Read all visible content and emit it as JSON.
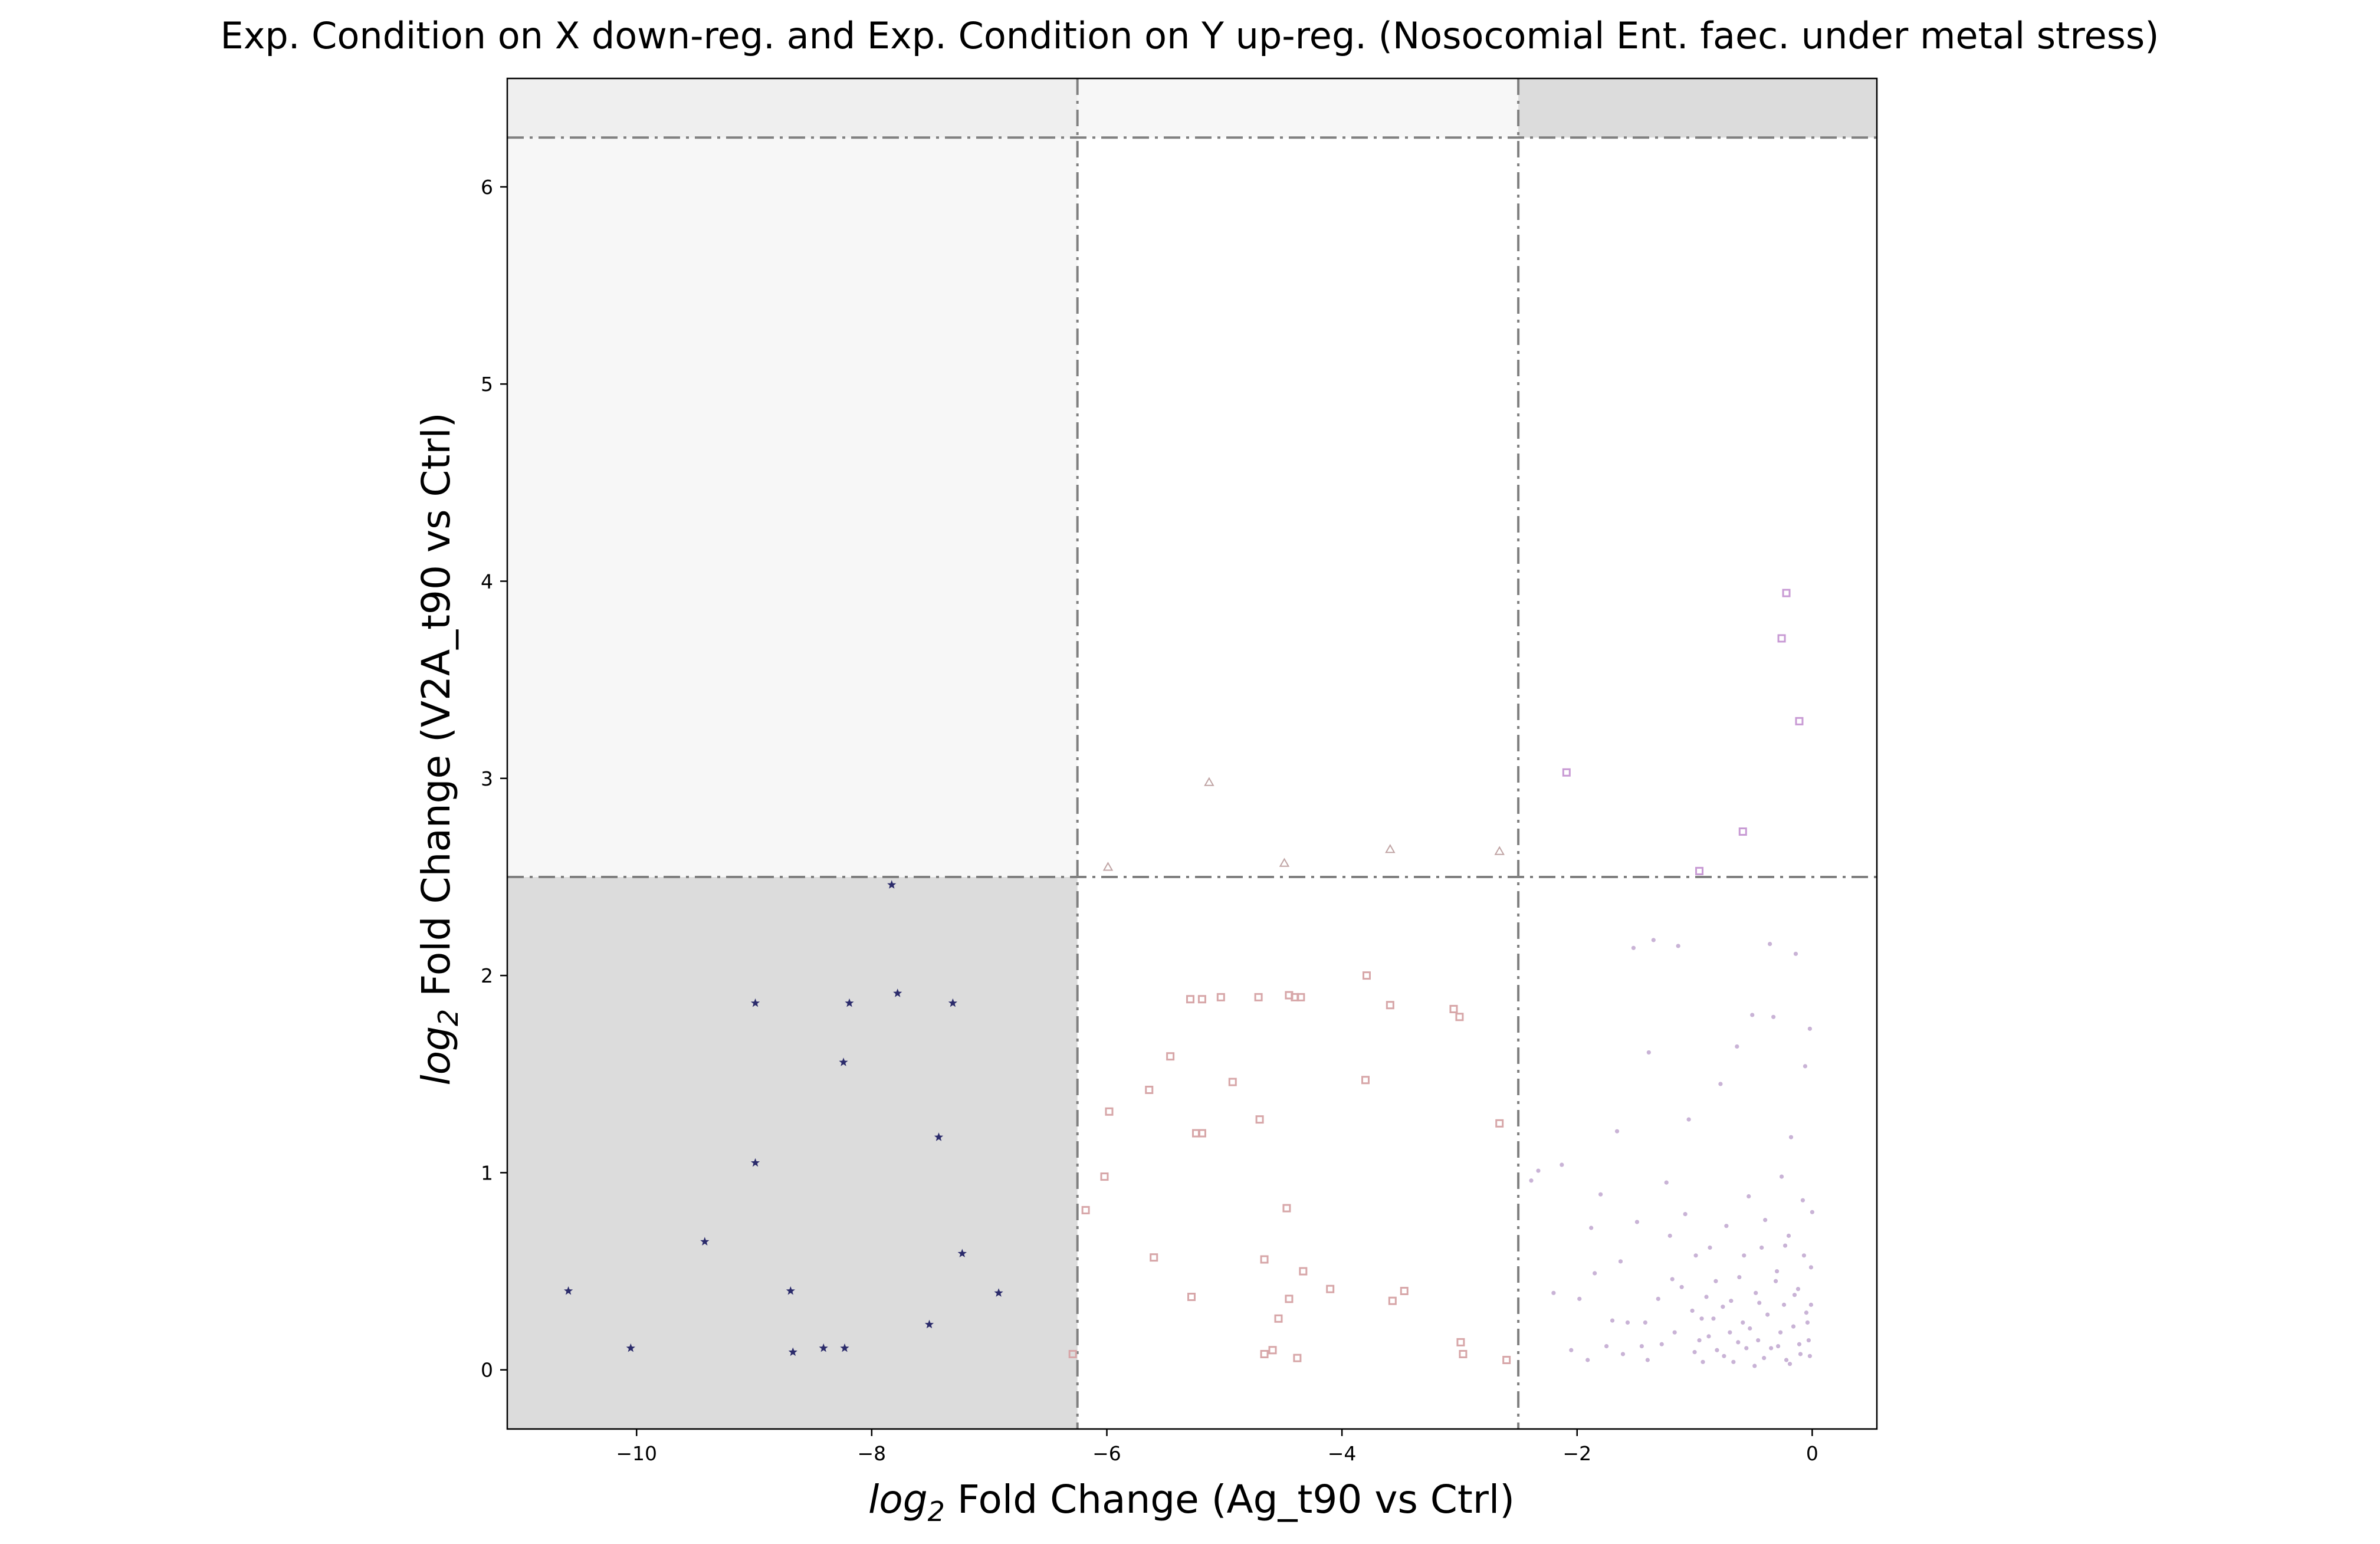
{
  "chart_data": {
    "type": "scatter",
    "title": "Exp. Condition on X down-reg. and Exp. Condition on Y up-reg. (Nosocomial Ent. faec. under metal stress)",
    "xlabel_prefix": "log",
    "xlabel_sub": "2",
    "xlabel_rest": " Fold Change (Ag_t90 vs Ctrl)",
    "ylabel_prefix": "log",
    "ylabel_sub": "2",
    "ylabel_rest": " Fold Change (V2A_t90 vs Ctrl)",
    "xlim": [
      -11.1,
      0.55
    ],
    "ylim": [
      -0.3,
      6.55
    ],
    "xticks": [
      -10,
      -8,
      -6,
      -4,
      -2,
      0
    ],
    "xtick_labels": [
      "−10",
      "−8",
      "−6",
      "−4",
      "−2",
      "0"
    ],
    "yticks": [
      0,
      1,
      2,
      3,
      4,
      5,
      6
    ],
    "ytick_labels": [
      "0",
      "1",
      "2",
      "3",
      "4",
      "5",
      "6"
    ],
    "grid": false,
    "thresholds": {
      "x": [
        -6.25,
        -2.5
      ],
      "y": [
        2.5,
        6.25
      ]
    },
    "regions": [
      {
        "x": [
          -11.1,
          -6.25
        ],
        "y": [
          -0.3,
          2.5
        ],
        "color": "#dcdcdc"
      },
      {
        "x": [
          -11.1,
          -6.25
        ],
        "y": [
          2.5,
          6.25
        ],
        "color": "#f7f7f7"
      },
      {
        "x": [
          -11.1,
          -6.25
        ],
        "y": [
          6.25,
          6.55
        ],
        "color": "#efefef"
      },
      {
        "x": [
          -6.25,
          -2.5
        ],
        "y": [
          6.25,
          6.55
        ],
        "color": "#f7f7f7"
      },
      {
        "x": [
          -2.5,
          0.55
        ],
        "y": [
          6.25,
          6.55
        ],
        "color": "#dcdcdc"
      }
    ],
    "series": [
      {
        "marker": "star",
        "color": "#2b2b6b",
        "points": [
          [
            -10.58,
            0.4
          ],
          [
            -10.05,
            0.11
          ],
          [
            -9.42,
            0.65
          ],
          [
            -8.99,
            1.86
          ],
          [
            -8.99,
            1.05
          ],
          [
            -8.69,
            0.4
          ],
          [
            -8.67,
            0.09
          ],
          [
            -8.41,
            0.11
          ],
          [
            -8.23,
            0.11
          ],
          [
            -8.24,
            1.56
          ],
          [
            -8.19,
            1.86
          ],
          [
            -7.83,
            2.46
          ],
          [
            -7.78,
            1.91
          ],
          [
            -7.51,
            0.23
          ],
          [
            -7.43,
            1.18
          ],
          [
            -7.31,
            1.86
          ],
          [
            -7.23,
            0.59
          ],
          [
            -6.92,
            0.39
          ]
        ]
      },
      {
        "marker": "square",
        "color": "#d7a6a8",
        "points": [
          [
            -6.29,
            0.08
          ],
          [
            -6.18,
            0.81
          ],
          [
            -6.02,
            0.98
          ],
          [
            -5.98,
            1.31
          ],
          [
            -5.64,
            1.42
          ],
          [
            -5.6,
            0.57
          ],
          [
            -5.46,
            1.59
          ],
          [
            -5.29,
            1.88
          ],
          [
            -5.28,
            0.37
          ],
          [
            -5.24,
            1.2
          ],
          [
            -5.19,
            1.88
          ],
          [
            -5.19,
            1.2
          ],
          [
            -5.03,
            1.89
          ],
          [
            -4.93,
            1.46
          ],
          [
            -4.71,
            1.89
          ],
          [
            -4.7,
            1.27
          ],
          [
            -4.66,
            0.56
          ],
          [
            -4.66,
            0.08
          ],
          [
            -4.59,
            0.1
          ],
          [
            -4.54,
            0.26
          ],
          [
            -4.47,
            0.82
          ],
          [
            -4.45,
            1.9
          ],
          [
            -4.45,
            0.36
          ],
          [
            -4.4,
            1.89
          ],
          [
            -4.38,
            0.06
          ],
          [
            -4.33,
            0.5
          ],
          [
            -4.35,
            1.89
          ],
          [
            -4.1,
            0.41
          ],
          [
            -3.8,
            1.47
          ],
          [
            -3.79,
            2.0
          ],
          [
            -3.59,
            1.85
          ],
          [
            -3.57,
            0.35
          ],
          [
            -3.47,
            0.4
          ],
          [
            -3.05,
            1.83
          ],
          [
            -3.0,
            1.79
          ],
          [
            -2.99,
            0.14
          ],
          [
            -2.97,
            0.08
          ],
          [
            -2.66,
            1.25
          ],
          [
            -2.6,
            0.05
          ]
        ]
      },
      {
        "marker": "triangle",
        "color": "#c0a4a4",
        "points": [
          [
            -5.99,
            2.55
          ],
          [
            -5.13,
            2.98
          ],
          [
            -4.49,
            2.57
          ],
          [
            -3.59,
            2.64
          ],
          [
            -2.66,
            2.63
          ]
        ]
      },
      {
        "marker": "square",
        "color": "#c89ad4",
        "points": [
          [
            -2.09,
            3.03
          ],
          [
            -0.59,
            2.73
          ],
          [
            -0.96,
            2.53
          ],
          [
            -0.26,
            3.71
          ],
          [
            -0.22,
            3.94
          ],
          [
            -0.11,
            3.29
          ]
        ]
      },
      {
        "marker": "dot",
        "color": "#c9b3d6",
        "points": [
          [
            -2.39,
            0.96
          ],
          [
            -2.33,
            1.01
          ],
          [
            -2.2,
            0.39
          ],
          [
            -2.13,
            1.04
          ],
          [
            -2.05,
            0.1
          ],
          [
            -1.98,
            0.36
          ],
          [
            -1.91,
            0.05
          ],
          [
            -1.85,
            0.49
          ],
          [
            -1.8,
            0.89
          ],
          [
            -1.75,
            0.12
          ],
          [
            -1.7,
            0.25
          ],
          [
            -1.66,
            1.21
          ],
          [
            -1.61,
            0.08
          ],
          [
            -1.57,
            0.24
          ],
          [
            -1.52,
            2.14
          ],
          [
            -1.49,
            0.75
          ],
          [
            -1.45,
            0.12
          ],
          [
            -1.42,
            0.24
          ],
          [
            -1.39,
            1.61
          ],
          [
            -1.35,
            2.18
          ],
          [
            -1.31,
            0.36
          ],
          [
            -1.28,
            0.13
          ],
          [
            -1.24,
            0.95
          ],
          [
            -1.21,
            0.68
          ],
          [
            -1.17,
            0.19
          ],
          [
            -1.14,
            2.15
          ],
          [
            -1.11,
            0.42
          ],
          [
            -1.08,
            0.79
          ],
          [
            -1.05,
            1.27
          ],
          [
            -1.02,
            0.3
          ],
          [
            -0.99,
            0.58
          ],
          [
            -0.96,
            0.15
          ],
          [
            -0.93,
            0.04
          ],
          [
            -0.9,
            0.37
          ],
          [
            -0.87,
            0.62
          ],
          [
            -0.84,
            0.26
          ],
          [
            -0.81,
            0.1
          ],
          [
            -0.78,
            1.45
          ],
          [
            -0.76,
            0.32
          ],
          [
            -0.73,
            0.73
          ],
          [
            -0.7,
            0.19
          ],
          [
            -0.67,
            0.04
          ],
          [
            -0.64,
            1.64
          ],
          [
            -0.62,
            0.47
          ],
          [
            -0.59,
            0.24
          ],
          [
            -0.56,
            0.11
          ],
          [
            -0.54,
            0.88
          ],
          [
            -0.51,
            1.8
          ],
          [
            -0.48,
            0.39
          ],
          [
            -0.46,
            0.15
          ],
          [
            -0.43,
            0.62
          ],
          [
            -0.41,
            0.06
          ],
          [
            -0.38,
            0.28
          ],
          [
            -0.36,
            2.16
          ],
          [
            -0.33,
            1.79
          ],
          [
            -0.31,
            0.45
          ],
          [
            -0.29,
            0.12
          ],
          [
            -0.26,
            0.98
          ],
          [
            -0.24,
            0.33
          ],
          [
            -0.22,
            0.05
          ],
          [
            -0.2,
            0.68
          ],
          [
            -0.18,
            1.18
          ],
          [
            -0.16,
            0.22
          ],
          [
            -0.14,
            2.11
          ],
          [
            -0.12,
            0.41
          ],
          [
            -0.1,
            0.08
          ],
          [
            -0.08,
            0.86
          ],
          [
            -0.06,
            1.54
          ],
          [
            -0.05,
            0.29
          ],
          [
            -0.03,
            0.15
          ],
          [
            -0.02,
            1.73
          ],
          [
            -0.01,
            0.52
          ],
          [
            0.0,
            0.8
          ],
          [
            -1.88,
            0.72
          ],
          [
            -1.63,
            0.55
          ],
          [
            -1.4,
            0.05
          ],
          [
            -1.19,
            0.46
          ],
          [
            -1.0,
            0.09
          ],
          [
            -0.94,
            0.26
          ],
          [
            -0.88,
            0.17
          ],
          [
            -0.82,
            0.45
          ],
          [
            -0.75,
            0.07
          ],
          [
            -0.69,
            0.35
          ],
          [
            -0.63,
            0.14
          ],
          [
            -0.58,
            0.58
          ],
          [
            -0.53,
            0.21
          ],
          [
            -0.49,
            0.02
          ],
          [
            -0.45,
            0.34
          ],
          [
            -0.4,
            0.76
          ],
          [
            -0.35,
            0.11
          ],
          [
            -0.3,
            0.5
          ],
          [
            -0.27,
            0.19
          ],
          [
            -0.23,
            0.63
          ],
          [
            -0.19,
            0.03
          ],
          [
            -0.15,
            0.38
          ],
          [
            -0.11,
            0.13
          ],
          [
            -0.07,
            0.58
          ],
          [
            -0.04,
            0.24
          ],
          [
            -0.02,
            0.07
          ],
          [
            -0.01,
            0.33
          ]
        ]
      }
    ]
  }
}
